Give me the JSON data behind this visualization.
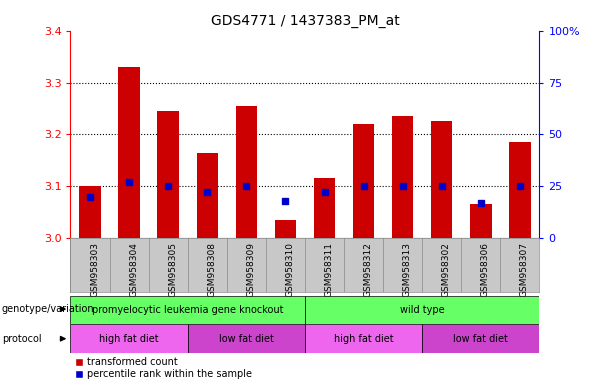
{
  "title": "GDS4771 / 1437383_PM_at",
  "samples": [
    "GSM958303",
    "GSM958304",
    "GSM958305",
    "GSM958308",
    "GSM958309",
    "GSM958310",
    "GSM958311",
    "GSM958312",
    "GSM958313",
    "GSM958302",
    "GSM958306",
    "GSM958307"
  ],
  "bar_values": [
    3.1,
    3.33,
    3.245,
    3.165,
    3.255,
    3.035,
    3.115,
    3.22,
    3.235,
    3.225,
    3.065,
    3.185
  ],
  "blue_pct": [
    20,
    27,
    25,
    22,
    25,
    18,
    22,
    25,
    25,
    25,
    17,
    25
  ],
  "ylim": [
    3.0,
    3.4
  ],
  "y_ticks_left": [
    3.0,
    3.1,
    3.2,
    3.3,
    3.4
  ],
  "y_ticks_right": [
    0,
    25,
    50,
    75,
    100
  ],
  "bar_color": "#cc0000",
  "blue_color": "#0000cc",
  "genotype_labels": [
    "promyelocytic leukemia gene knockout",
    "wild type"
  ],
  "genotype_ranges": [
    [
      0,
      6
    ],
    [
      6,
      12
    ]
  ],
  "genotype_color": "#66ff66",
  "protocol_data": [
    [
      0,
      3,
      "high fat diet",
      "#ee66ee"
    ],
    [
      3,
      6,
      "low fat diet",
      "#cc44cc"
    ],
    [
      6,
      9,
      "high fat diet",
      "#ee66ee"
    ],
    [
      9,
      12,
      "low fat diet",
      "#cc44cc"
    ]
  ],
  "bar_width": 0.55,
  "xtick_bg": "#c8c8c8"
}
